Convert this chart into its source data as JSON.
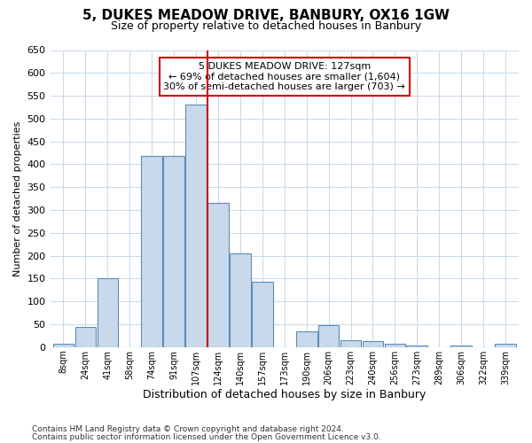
{
  "title": "5, DUKES MEADOW DRIVE, BANBURY, OX16 1GW",
  "subtitle": "Size of property relative to detached houses in Banbury",
  "xlabel": "Distribution of detached houses by size in Banbury",
  "ylabel": "Number of detached properties",
  "categories": [
    "8sqm",
    "24sqm",
    "41sqm",
    "58sqm",
    "74sqm",
    "91sqm",
    "107sqm",
    "124sqm",
    "140sqm",
    "157sqm",
    "173sqm",
    "190sqm",
    "206sqm",
    "223sqm",
    "240sqm",
    "256sqm",
    "273sqm",
    "289sqm",
    "306sqm",
    "322sqm",
    "339sqm"
  ],
  "bar_heights": [
    8,
    45,
    150,
    0,
    418,
    418,
    530,
    315,
    205,
    143,
    0,
    35,
    48,
    15,
    13,
    8,
    3,
    0,
    3,
    0,
    8
  ],
  "bar_color": "#c9d9eb",
  "bar_edge_color": "#5b8db8",
  "vline_index": 7,
  "vline_color": "#cc0000",
  "annotation_line1": "5 DUKES MEADOW DRIVE: 127sqm",
  "annotation_line2": "← 69% of detached houses are smaller (1,604)",
  "annotation_line3": "30% of semi-detached houses are larger (703) →",
  "annotation_box_edge_color": "#cc0000",
  "ylim": [
    0,
    650
  ],
  "yticks": [
    0,
    50,
    100,
    150,
    200,
    250,
    300,
    350,
    400,
    450,
    500,
    550,
    600,
    650
  ],
  "footer1": "Contains HM Land Registry data © Crown copyright and database right 2024.",
  "footer2": "Contains public sector information licensed under the Open Government Licence v3.0.",
  "bg_color": "#ffffff",
  "grid_color": "#c8d8e8",
  "title_fontsize": 11,
  "subtitle_fontsize": 9,
  "ylabel_fontsize": 8,
  "xlabel_fontsize": 9,
  "tick_fontsize": 8,
  "xtick_fontsize": 7,
  "annotation_fontsize": 8,
  "footer_fontsize": 6.5
}
